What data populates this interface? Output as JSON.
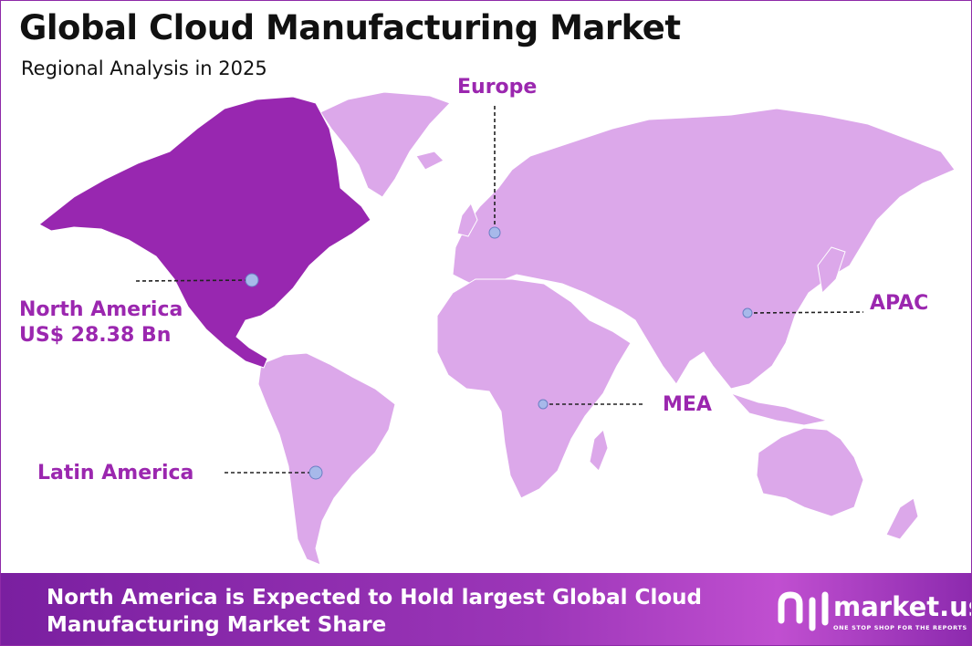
{
  "header": {
    "title": "Global Cloud Manufacturing Market",
    "subtitle": "Regional Analysis in 2025"
  },
  "regions": [
    {
      "label": "North America",
      "value": "US$ 28.38 Bn"
    },
    {
      "label": "Europe"
    },
    {
      "label": "APAC"
    },
    {
      "label": "MEA"
    },
    {
      "label": "Latin America"
    }
  ],
  "footer": {
    "text": "North America is Expected to Hold largest Global Cloud Manufacturing Market Share"
  },
  "logo": {
    "name": "market.us",
    "tagline": "ONE STOP SHOP FOR THE REPORTS"
  }
}
